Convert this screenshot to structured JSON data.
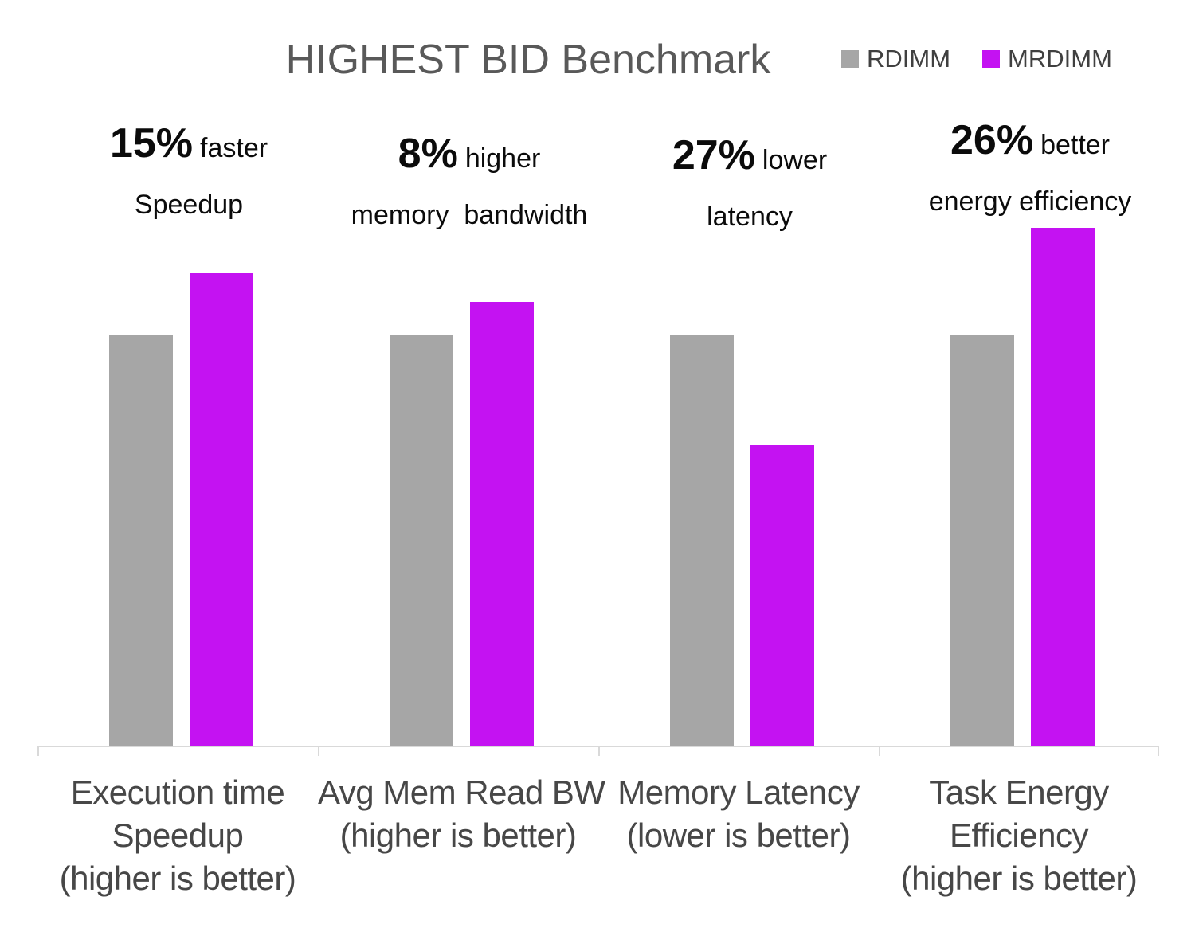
{
  "title": "HIGHEST BID Benchmark",
  "legend": {
    "items": [
      {
        "label": "RDIMM",
        "color": "#a6a6a6"
      },
      {
        "label": "MRDIMM",
        "color": "#c412f2"
      }
    ]
  },
  "chart_data": {
    "type": "bar",
    "title": "HIGHEST BID Benchmark",
    "categories": [
      "Execution time Speedup (higher is better)",
      "Avg Mem Read BW (higher is better)",
      "Memory Latency (lower is better)",
      "Task Energy Efficiency (higher is better)"
    ],
    "series": [
      {
        "name": "RDIMM",
        "color": "#a6a6a6",
        "values": [
          1.0,
          1.0,
          1.0,
          1.0
        ]
      },
      {
        "name": "MRDIMM",
        "color": "#c412f2",
        "values": [
          1.15,
          1.08,
          0.73,
          1.26
        ]
      }
    ],
    "value_basis": "normalized, RDIMM = 1.00 in every category",
    "ylim": [
      0,
      1.27
    ],
    "grid": false,
    "y_axis_shown": false,
    "legend_position": "top-right",
    "annotations": [
      {
        "pct": "15%",
        "qualifier": "faster",
        "detail": "Speedup"
      },
      {
        "pct": "8%",
        "qualifier": "higher",
        "detail": "memory  bandwidth"
      },
      {
        "pct": "27%",
        "qualifier": "lower",
        "detail": "latency"
      },
      {
        "pct": "26%",
        "qualifier": "better",
        "detail": "energy efficiency"
      }
    ]
  },
  "xlabels": [
    {
      "lines": [
        "Execution time",
        "Speedup",
        "(higher is better)"
      ]
    },
    {
      "lines": [
        "Avg Mem Read BW",
        "(higher is better)",
        ""
      ]
    },
    {
      "lines": [
        "Memory Latency",
        "(lower is better)",
        ""
      ]
    },
    {
      "lines": [
        "Task Energy",
        "Efficiency",
        "(higher is better)"
      ]
    }
  ]
}
